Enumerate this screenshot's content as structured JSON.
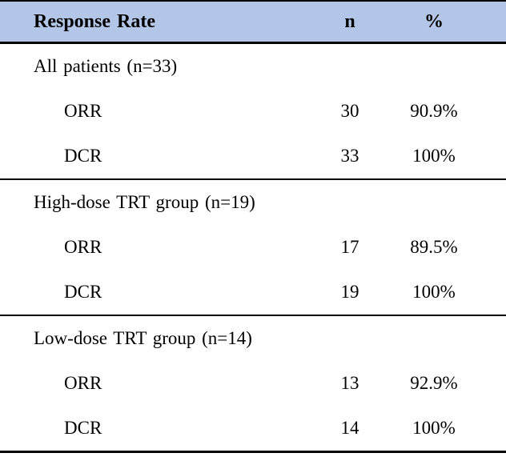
{
  "colors": {
    "header_bg": "#b4c6e7",
    "border": "#000000",
    "text": "#000000",
    "background": "#ffffff"
  },
  "header": {
    "response_rate": "Response Rate",
    "n": "n",
    "pct": "%"
  },
  "sections": [
    {
      "label": "All patients (n=33)",
      "rows": [
        {
          "label": "ORR",
          "n": "30",
          "pct": "90.9%"
        },
        {
          "label": "DCR",
          "n": "33",
          "pct": "100%"
        }
      ]
    },
    {
      "label": "High-dose TRT group (n=19)",
      "rows": [
        {
          "label": "ORR",
          "n": "17",
          "pct": "89.5%"
        },
        {
          "label": "DCR",
          "n": "19",
          "pct": "100%"
        }
      ]
    },
    {
      "label": "Low-dose TRT group (n=14)",
      "rows": [
        {
          "label": "ORR",
          "n": "13",
          "pct": "92.9%"
        },
        {
          "label": "DCR",
          "n": "14",
          "pct": "100%"
        }
      ]
    }
  ],
  "chart_data": {
    "type": "table",
    "columns": [
      "Response Rate",
      "n",
      "%"
    ],
    "rows": [
      [
        "All patients (n=33)",
        "",
        ""
      ],
      [
        "ORR",
        "30",
        "90.9%"
      ],
      [
        "DCR",
        "33",
        "100%"
      ],
      [
        "High-dose TRT group (n=19)",
        "",
        ""
      ],
      [
        "ORR",
        "17",
        "89.5%"
      ],
      [
        "DCR",
        "19",
        "100%"
      ],
      [
        "Low-dose TRT group (n=14)",
        "",
        ""
      ],
      [
        "ORR",
        "13",
        "92.9%"
      ],
      [
        "DCR",
        "14",
        "100%"
      ]
    ]
  }
}
